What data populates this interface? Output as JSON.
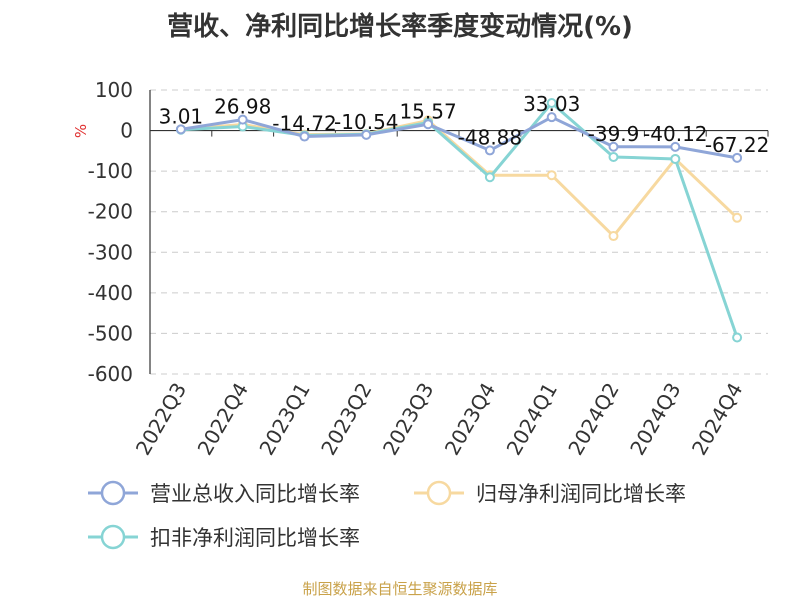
{
  "title": "营收、净利同比增长率季度变动情况(%)",
  "footer": "制图数据来自恒生聚源数据库",
  "chart_data": {
    "type": "line",
    "title": "营收、净利同比增长率季度变动情况(%)",
    "ylabel": "%",
    "xlabel": "",
    "categories": [
      "2022Q3",
      "2022Q4",
      "2023Q1",
      "2023Q2",
      "2023Q3",
      "2023Q4",
      "2024Q1",
      "2024Q2",
      "2024Q3",
      "2024Q4"
    ],
    "ylim": [
      -600,
      100
    ],
    "yticks": [
      100,
      0,
      -100,
      -200,
      -300,
      -400,
      -500,
      -600
    ],
    "grid": true,
    "legend_position": "bottom",
    "series": [
      {
        "name": "营业总收入同比增长率",
        "color": "#8fa6d8",
        "values": [
          3.01,
          26.98,
          -14.72,
          -10.54,
          15.57,
          -48.88,
          33.03,
          -39.9,
          -40.12,
          -67.22
        ],
        "labels": [
          "3.01",
          "26.98",
          "-14.72",
          "-10.54",
          "15.57",
          "-48.88",
          "33.03",
          "-39.9",
          "-40.12",
          "-67.22"
        ]
      },
      {
        "name": "归母净利润同比增长率",
        "color": "#f7d9a0",
        "values": [
          3,
          15,
          -10,
          -8,
          25,
          -110,
          -110,
          -260,
          -70,
          -215
        ]
      },
      {
        "name": "扣非净利润同比增长率",
        "color": "#86d4d4",
        "values": [
          2,
          10,
          -12,
          -9,
          20,
          -115,
          68,
          -65,
          -70,
          -510
        ]
      }
    ]
  }
}
